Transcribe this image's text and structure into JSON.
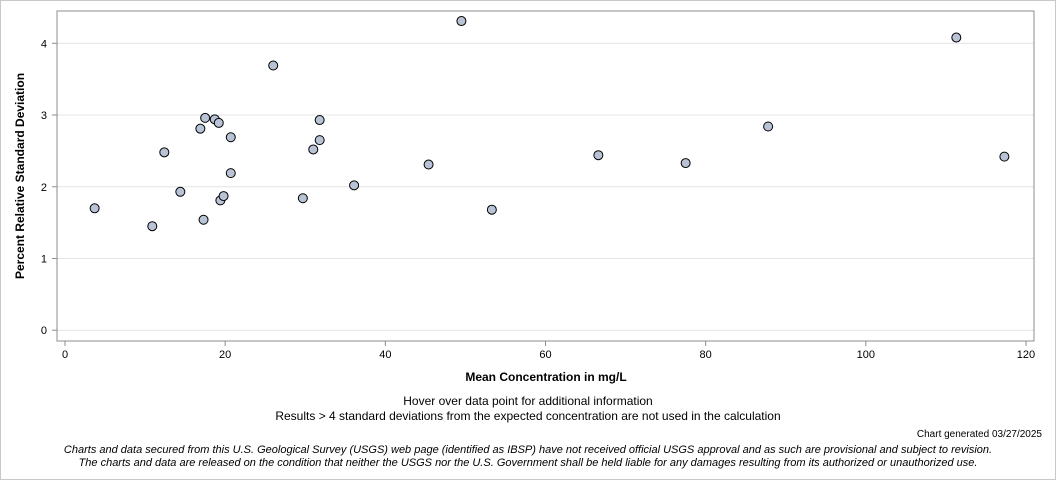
{
  "chart_data": {
    "type": "scatter",
    "xlabel": "Mean Concentration in mg/L",
    "ylabel": "Percent Relative Standard Deviation",
    "xlim": [
      -1,
      121
    ],
    "ylim": [
      -0.15,
      4.45
    ],
    "xticks": [
      0,
      20,
      40,
      60,
      80,
      100,
      120
    ],
    "yticks": [
      0,
      1,
      2,
      3,
      4
    ],
    "grid": "horizontal",
    "marker_fill": "#b8c4d6",
    "marker_stroke": "#000000",
    "points": [
      {
        "x": 3.7,
        "y": 1.7
      },
      {
        "x": 10.9,
        "y": 1.45
      },
      {
        "x": 12.4,
        "y": 2.48
      },
      {
        "x": 14.4,
        "y": 1.93
      },
      {
        "x": 16.9,
        "y": 2.81
      },
      {
        "x": 17.3,
        "y": 1.54
      },
      {
        "x": 17.5,
        "y": 2.96
      },
      {
        "x": 18.7,
        "y": 2.94
      },
      {
        "x": 19.2,
        "y": 2.89
      },
      {
        "x": 19.4,
        "y": 1.81
      },
      {
        "x": 19.8,
        "y": 1.87
      },
      {
        "x": 20.7,
        "y": 2.69
      },
      {
        "x": 20.7,
        "y": 2.19
      },
      {
        "x": 26.0,
        "y": 3.69
      },
      {
        "x": 29.7,
        "y": 1.84
      },
      {
        "x": 31.0,
        "y": 2.52
      },
      {
        "x": 31.8,
        "y": 2.93
      },
      {
        "x": 31.8,
        "y": 2.65
      },
      {
        "x": 36.1,
        "y": 2.02
      },
      {
        "x": 45.4,
        "y": 2.31
      },
      {
        "x": 49.5,
        "y": 4.31
      },
      {
        "x": 53.3,
        "y": 1.68
      },
      {
        "x": 66.6,
        "y": 2.44
      },
      {
        "x": 77.5,
        "y": 2.33
      },
      {
        "x": 87.8,
        "y": 2.84
      },
      {
        "x": 111.3,
        "y": 4.08
      },
      {
        "x": 117.3,
        "y": 2.42
      }
    ]
  },
  "notes": {
    "hover": "Hover over data point for additional information",
    "results": "Results > 4 standard deviations from the expected concentration are not used in the calculation",
    "generated": "Chart generated 03/27/2025",
    "disclaimer_1": "Charts and data secured from this U.S. Geological Survey (USGS) web page (identified as IBSP) have not received official USGS approval and as such are provisional and subject to revision.",
    "disclaimer_2": "The charts and data are released on the condition that neither the USGS nor the U.S. Government shall be held liable for any damages resulting from its authorized or unauthorized use."
  }
}
